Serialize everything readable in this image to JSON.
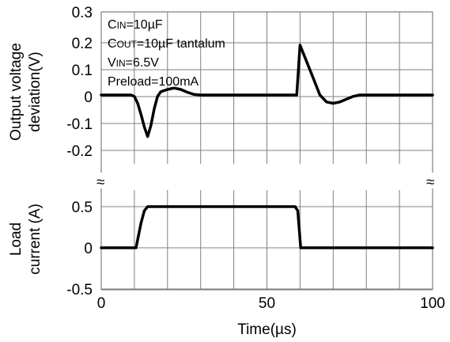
{
  "chart_data": {
    "type": "line",
    "x": {
      "label": "Time(µs)",
      "range": [
        0,
        100
      ],
      "ticks": [
        "0",
        "50",
        "100"
      ],
      "grid_step": 10
    },
    "panels": [
      {
        "name": "output_voltage",
        "ylabel_lines": [
          "Output voltage",
          "deviation(V)"
        ],
        "ylim": [
          -0.2,
          0.3
        ],
        "yticks": [
          "0.3",
          "0.2",
          "0.1",
          "0",
          "-0.1",
          "-0.2"
        ],
        "series": [
          {
            "points": [
              [
                0,
                0
              ],
              [
                9,
                0
              ],
              [
                10,
                -0.005
              ],
              [
                11,
                -0.03
              ],
              [
                12,
                -0.07
              ],
              [
                13,
                -0.115
              ],
              [
                14,
                -0.15
              ],
              [
                15,
                -0.11
              ],
              [
                16,
                -0.05
              ],
              [
                17,
                -0.005
              ],
              [
                18,
                0.012
              ],
              [
                20,
                0.02
              ],
              [
                22,
                0.025
              ],
              [
                24,
                0.02
              ],
              [
                26,
                0.01
              ],
              [
                28,
                0.002
              ],
              [
                30,
                0
              ],
              [
                59,
                0
              ],
              [
                60,
                0.18
              ],
              [
                62,
                0.12
              ],
              [
                64,
                0.06
              ],
              [
                66,
                0.0
              ],
              [
                68,
                -0.025
              ],
              [
                70,
                -0.03
              ],
              [
                72,
                -0.025
              ],
              [
                74,
                -0.015
              ],
              [
                76,
                -0.005
              ],
              [
                78,
                0
              ],
              [
                100,
                0
              ]
            ]
          }
        ],
        "annotations": [
          {
            "main": "C",
            "sub": "IN",
            "rest": "=10µF"
          },
          {
            "main": "C",
            "sub": "OUT",
            "rest": "=10µF tantalum"
          },
          {
            "main": "V",
            "sub": "IN",
            "rest": "=6.5V"
          },
          {
            "main": "",
            "sub": "",
            "rest": "Preload=100mA"
          }
        ]
      },
      {
        "name": "load_current",
        "ylabel_lines": [
          "Load",
          "current (A)"
        ],
        "ylim": [
          -0.5,
          0.5
        ],
        "yticks": [
          "0.5",
          "0",
          "-0.5"
        ],
        "series": [
          {
            "points": [
              [
                0,
                0
              ],
              [
                10.5,
                0
              ],
              [
                12,
                0.3
              ],
              [
                13,
                0.45
              ],
              [
                14,
                0.5
              ],
              [
                58.5,
                0.5
              ],
              [
                59.3,
                0.45
              ],
              [
                59.8,
                0.2
              ],
              [
                60.2,
                0
              ],
              [
                100,
                0
              ]
            ]
          }
        ]
      }
    ],
    "break_marks": [
      "≈",
      "≈"
    ],
    "grid": true
  }
}
